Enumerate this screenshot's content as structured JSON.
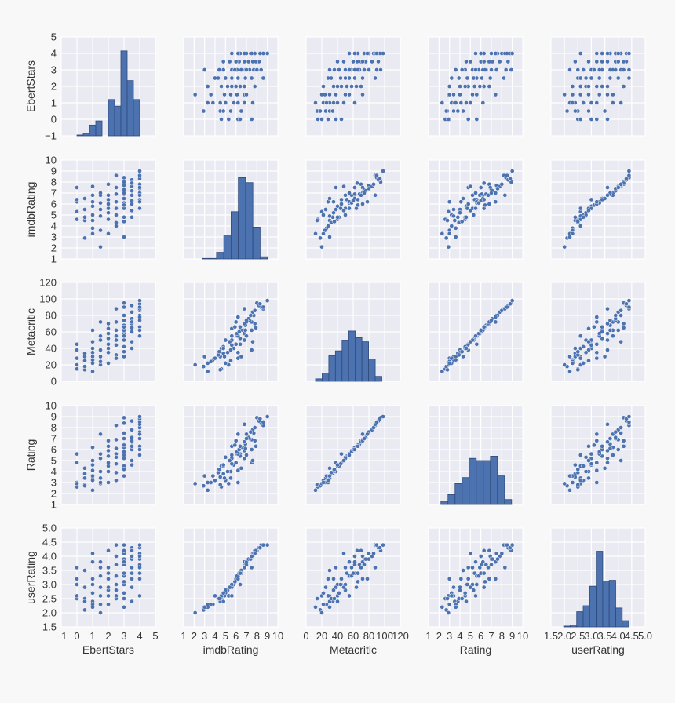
{
  "chart_data": {
    "type": "pairplot",
    "variables": [
      "EbertStars",
      "imdbRating",
      "Metacritic",
      "Rating",
      "userRating"
    ],
    "axes": {
      "EbertStars": {
        "range": [
          -1,
          5
        ],
        "ticks": [
          "-1",
          "0",
          "1",
          "2",
          "3",
          "4",
          "5"
        ]
      },
      "imdbRating": {
        "range": [
          1,
          10
        ],
        "ticks": [
          "1",
          "2",
          "3",
          "4",
          "5",
          "6",
          "7",
          "8",
          "9",
          "10"
        ]
      },
      "Metacritic": {
        "range": [
          0,
          120
        ],
        "ticks": [
          "0",
          "20",
          "40",
          "60",
          "80",
          "100",
          "120"
        ]
      },
      "Rating": {
        "range": [
          1,
          10
        ],
        "ticks": [
          "1",
          "2",
          "3",
          "4",
          "5",
          "6",
          "7",
          "8",
          "9",
          "10"
        ]
      },
      "userRating": {
        "range": [
          1.5,
          5.0
        ],
        "ticks": [
          "1.5",
          "2.0",
          "2.5",
          "3.0",
          "3.5",
          "4.0",
          "4.5",
          "5.0"
        ]
      }
    },
    "grid": true,
    "colors": {
      "background": "#eaeaf2",
      "grid": "#ffffff",
      "marker": "#4c72b0",
      "bar_edge": "#2f4a7a",
      "page": "#f8f8f8"
    },
    "histograms": {
      "EbertStars": {
        "bin_range": [
          0,
          4
        ],
        "bar_tops": [
          -0.95,
          -0.85,
          -0.35,
          -0.1,
          -1,
          1.2,
          0.8,
          4.15,
          2.35,
          1.2
        ]
      },
      "imdbRating": {
        "bin_range": [
          2.06,
          9.0
        ],
        "bar_tops": [
          1.0,
          1.05,
          1.05,
          1.6,
          3.1,
          5.3,
          8.4,
          7.95,
          3.9,
          1.2
        ]
      },
      "Metacritic": {
        "bin_range": [
          12,
          96.5
        ],
        "bar_tops": [
          3,
          10,
          31,
          37,
          50,
          61,
          53,
          48,
          27,
          6
        ]
      },
      "Rating": {
        "bin_range": [
          2.18,
          8.94
        ],
        "bar_tops": [
          1.3,
          1.9,
          2.9,
          3.45,
          5.2,
          5.0,
          5.0,
          5.4,
          3.6,
          1.45
        ]
      },
      "userRating": {
        "bin_range": [
          1.97,
          4.39
        ],
        "bar_tops": [
          1.53,
          1.57,
          2.04,
          2.25,
          2.94,
          4.18,
          3.12,
          3.15,
          2.17,
          1.72
        ]
      }
    },
    "records_columns": [
      "EbertStars",
      "imdbRating",
      "Metacritic",
      "Rating",
      "userRating"
    ],
    "records": [
      [
        0,
        4.6,
        15,
        2.6,
        2.5
      ],
      [
        0,
        6.2,
        28,
        3.0,
        3.2
      ],
      [
        0,
        5.3,
        20,
        2.9,
        2.6
      ],
      [
        0,
        7.5,
        38,
        4.8,
        3.6
      ],
      [
        0,
        6.4,
        45,
        5.6,
        3.0
      ],
      [
        0.5,
        4.5,
        14,
        2.8,
        2.5
      ],
      [
        0.5,
        6.5,
        30,
        4.3,
        3.5
      ],
      [
        0.5,
        2.9,
        18,
        2.7,
        2.1
      ],
      [
        0.5,
        5.5,
        25,
        3.4,
        2.9
      ],
      [
        0.5,
        4.8,
        34,
        3.8,
        2.4
      ],
      [
        1,
        3.3,
        12,
        2.3,
        2.2
      ],
      [
        1,
        5.0,
        22,
        3.2,
        2.7
      ],
      [
        1,
        6.2,
        35,
        4.1,
        3.2
      ],
      [
        1,
        7.6,
        48,
        5.0,
        4.1
      ],
      [
        1,
        4.5,
        30,
        3.5,
        2.4
      ],
      [
        1,
        5.8,
        40,
        4.6,
        3.0
      ],
      [
        1,
        3.8,
        26,
        3.6,
        2.3
      ],
      [
        1,
        6.8,
        62,
        6.2,
        3.8
      ],
      [
        1.5,
        2.1,
        20,
        2.9,
        2.0
      ],
      [
        1.5,
        5.5,
        38,
        4.0,
        2.9
      ],
      [
        1.5,
        6.8,
        50,
        5.2,
        3.6
      ],
      [
        1.5,
        4.9,
        30,
        3.4,
        2.6
      ],
      [
        1.5,
        6.1,
        55,
        5.6,
        3.3
      ],
      [
        1.5,
        3.6,
        24,
        3.0,
        2.3
      ],
      [
        1.5,
        7.0,
        72,
        7.4,
        3.8
      ],
      [
        2,
        3.3,
        22,
        3.0,
        2.3
      ],
      [
        2,
        5.2,
        35,
        4.0,
        2.8
      ],
      [
        2,
        6.0,
        45,
        4.8,
        3.2
      ],
      [
        2,
        6.8,
        58,
        5.9,
        3.6
      ],
      [
        2,
        7.8,
        70,
        6.8,
        4.2
      ],
      [
        2,
        4.6,
        40,
        4.5,
        2.6
      ],
      [
        2,
        6.4,
        52,
        5.4,
        3.4
      ],
      [
        2,
        5.6,
        64,
        6.3,
        2.9
      ],
      [
        2.5,
        4.3,
        32,
        3.9,
        2.5
      ],
      [
        2.5,
        5.6,
        44,
        4.7,
        3.0
      ],
      [
        2.5,
        6.2,
        55,
        5.6,
        3.3
      ],
      [
        2.5,
        6.9,
        62,
        6.1,
        3.7
      ],
      [
        2.5,
        7.5,
        72,
        6.9,
        4.0
      ],
      [
        2.5,
        8.6,
        88,
        8.2,
        4.4
      ],
      [
        2.5,
        5.0,
        50,
        5.3,
        2.8
      ],
      [
        2.5,
        4.0,
        28,
        3.2,
        2.6
      ],
      [
        3,
        3.0,
        30,
        3.6,
        2.2
      ],
      [
        3,
        4.8,
        42,
        4.5,
        2.7
      ],
      [
        3,
        5.6,
        50,
        5.2,
        3.0
      ],
      [
        3,
        6.1,
        58,
        5.8,
        3.3
      ],
      [
        3,
        6.5,
        62,
        6.2,
        3.4
      ],
      [
        3,
        6.9,
        68,
        6.5,
        3.7
      ],
      [
        3,
        7.3,
        74,
        7.0,
        3.9
      ],
      [
        3,
        7.7,
        80,
        7.5,
        4.1
      ],
      [
        3,
        8.4,
        90,
        8.4,
        4.4
      ],
      [
        3,
        5.9,
        66,
        6.4,
        3.1
      ],
      [
        3,
        7.0,
        55,
        5.5,
        3.8
      ],
      [
        3,
        4.4,
        36,
        4.2,
        2.5
      ],
      [
        3,
        8.0,
        95,
        8.9,
        4.2
      ],
      [
        3.5,
        5.4,
        48,
        5.0,
        2.9
      ],
      [
        3.5,
        6.3,
        60,
        6.0,
        3.4
      ],
      [
        3.5,
        6.8,
        70,
        6.7,
        3.6
      ],
      [
        3.5,
        7.2,
        76,
        7.1,
        3.9
      ],
      [
        3.5,
        7.6,
        84,
        7.8,
        4.0
      ],
      [
        3.5,
        8.2,
        92,
        8.6,
        4.3
      ],
      [
        3.5,
        6.0,
        72,
        6.8,
        3.2
      ],
      [
        3.5,
        7.9,
        65,
        6.3,
        4.2
      ],
      [
        3.5,
        4.8,
        40,
        4.6,
        2.4
      ],
      [
        4,
        5.6,
        55,
        5.5,
        2.6
      ],
      [
        4,
        6.4,
        66,
        6.3,
        3.4
      ],
      [
        4,
        7.0,
        74,
        7.0,
        3.7
      ],
      [
        4,
        7.4,
        80,
        7.6,
        3.9
      ],
      [
        4,
        7.8,
        86,
        8.0,
        4.1
      ],
      [
        4,
        8.3,
        94,
        8.8,
        4.3
      ],
      [
        4,
        9.0,
        98,
        9.0,
        4.4
      ],
      [
        4,
        6.8,
        88,
        8.3,
        3.6
      ],
      [
        4,
        7.5,
        62,
        6.0,
        4.0
      ],
      [
        4,
        6.2,
        78,
        7.4,
        3.2
      ],
      [
        4,
        8.6,
        90,
        8.5,
        4.4
      ]
    ]
  }
}
